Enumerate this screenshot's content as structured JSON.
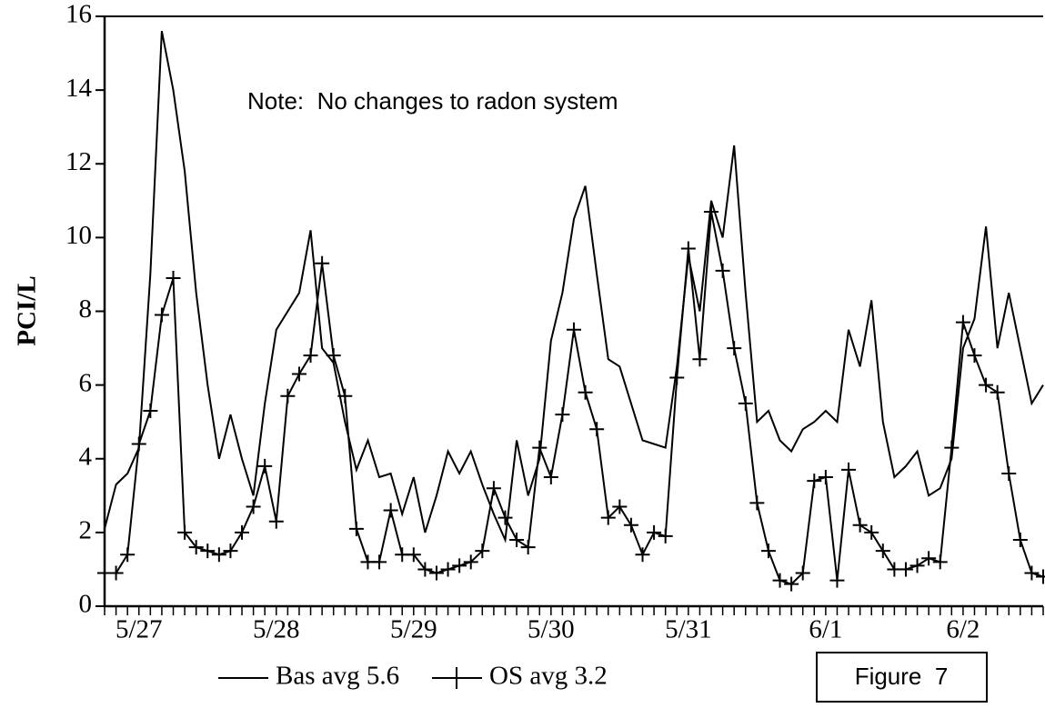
{
  "chart_data": {
    "type": "line",
    "y_label": "PCI/L",
    "annotation": "Note:  No changes to radon system",
    "figure_label": "Figure  7",
    "categories": [
      null,
      null,
      null,
      "5/27",
      null,
      null,
      null,
      null,
      null,
      null,
      null,
      null,
      null,
      null,
      null,
      "5/28",
      null,
      null,
      null,
      null,
      null,
      null,
      null,
      null,
      null,
      null,
      null,
      "5/29",
      null,
      null,
      null,
      null,
      null,
      null,
      null,
      null,
      null,
      null,
      null,
      "5/30",
      null,
      null,
      null,
      null,
      null,
      null,
      null,
      null,
      null,
      null,
      null,
      "5/31",
      null,
      null,
      null,
      null,
      null,
      null,
      null,
      null,
      null,
      null,
      null,
      "6/1",
      null,
      null,
      null,
      null,
      null,
      null,
      null,
      null,
      null,
      null,
      null,
      "6/2",
      null,
      null,
      null,
      null,
      null,
      null,
      null
    ],
    "series": [
      {
        "name": "Bas avg 5.6",
        "color": "#000000",
        "marker": "none",
        "values": [
          2.1,
          3.3,
          3.6,
          4.3,
          9.0,
          15.6,
          14.0,
          11.8,
          8.5,
          6.0,
          4.0,
          5.2,
          4.0,
          3.0,
          5.5,
          7.5,
          8.0,
          8.5,
          10.2,
          7.0,
          6.6,
          5.0,
          3.7,
          4.5,
          3.5,
          3.6,
          2.5,
          3.5,
          2.0,
          3.0,
          4.2,
          3.6,
          4.2,
          3.3,
          2.5,
          1.8,
          4.5,
          3.0,
          4.0,
          7.2,
          8.5,
          10.5,
          11.4,
          9.0,
          6.7,
          6.5,
          5.5,
          4.5,
          4.4,
          4.3,
          6.5,
          9.5,
          8.0,
          11.0,
          10.0,
          12.5,
          8.5,
          5.0,
          5.3,
          4.5,
          4.2,
          4.8,
          5.0,
          5.3,
          5.0,
          7.5,
          6.5,
          8.3,
          5.0,
          3.5,
          3.8,
          4.2,
          3.0,
          3.2,
          4.0,
          7.0,
          7.8,
          10.3,
          7.0,
          8.5,
          7.0,
          5.5,
          6.0
        ]
      },
      {
        "name": "OS avg 3.2",
        "color": "#000000",
        "marker": "plus",
        "values": [
          0.9,
          0.9,
          1.4,
          4.4,
          5.3,
          7.9,
          8.9,
          2.0,
          1.6,
          1.5,
          1.4,
          1.5,
          2.0,
          2.7,
          3.8,
          2.3,
          5.7,
          6.3,
          6.8,
          9.3,
          6.8,
          5.7,
          2.1,
          1.2,
          1.2,
          2.6,
          1.4,
          1.4,
          1.0,
          0.9,
          1.0,
          1.1,
          1.2,
          1.5,
          3.2,
          2.4,
          1.8,
          1.6,
          4.3,
          3.5,
          5.2,
          7.5,
          5.8,
          4.8,
          2.4,
          2.7,
          2.2,
          1.4,
          2.0,
          1.9,
          6.2,
          9.7,
          6.7,
          10.7,
          9.1,
          7.0,
          5.5,
          2.8,
          1.5,
          0.7,
          0.6,
          0.9,
          3.4,
          3.5,
          0.7,
          3.7,
          2.2,
          2.0,
          1.5,
          1.0,
          1.0,
          1.1,
          1.3,
          1.2,
          4.3,
          7.7,
          6.8,
          6.0,
          5.8,
          3.6,
          1.8,
          0.9,
          0.8
        ]
      }
    ],
    "ylim": [
      0,
      16
    ],
    "yticks": [
      0,
      2,
      4,
      6,
      8,
      10,
      12,
      14,
      16
    ]
  }
}
